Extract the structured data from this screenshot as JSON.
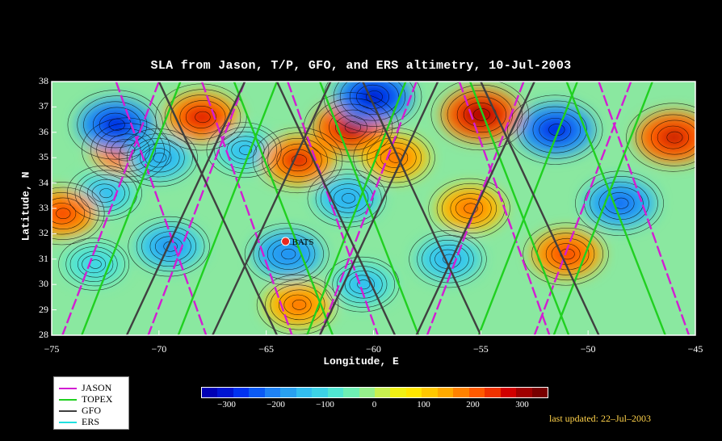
{
  "title": "SLA from Jason, T/P, GFO, and ERS altimetry, 10-Jul-2003",
  "xlabel": "Longitude, E",
  "ylabel": "Latitude, N",
  "x_ticks": [
    "−75",
    "−70",
    "−65",
    "−60",
    "−55",
    "−50",
    "−45"
  ],
  "x_tick_values": [
    -75,
    -70,
    -65,
    -60,
    -55,
    -50,
    -45
  ],
  "y_ticks": [
    "28",
    "29",
    "30",
    "31",
    "32",
    "33",
    "34",
    "35",
    "36",
    "37",
    "38"
  ],
  "y_tick_values": [
    28,
    29,
    30,
    31,
    32,
    33,
    34,
    35,
    36,
    37,
    38
  ],
  "xlim": [
    -75,
    -45
  ],
  "ylim": [
    28,
    38
  ],
  "station": {
    "label": "BATS",
    "lon": -64.1,
    "lat": 31.7,
    "color": "#e8281e"
  },
  "legend": [
    {
      "label": "JASON",
      "color": "#d21ed2"
    },
    {
      "label": "TOPEX",
      "color": "#20d020"
    },
    {
      "label": "GFO",
      "color": "#404040"
    },
    {
      "label": "ERS",
      "color": "#20e0e0"
    }
  ],
  "colorbar": {
    "ticks": [
      "−300",
      "−200",
      "−100",
      "0",
      "100",
      "200",
      "300"
    ],
    "tick_values": [
      -300,
      -200,
      -100,
      0,
      100,
      200,
      300
    ],
    "range": [
      -350,
      350
    ],
    "colors": [
      "#0000b4",
      "#0014d2",
      "#0032f0",
      "#0a5af5",
      "#1e82f5",
      "#28a0f0",
      "#32bef0",
      "#3cd2e6",
      "#50e6d2",
      "#6ef0b4",
      "#96f08c",
      "#c8f050",
      "#f0f014",
      "#ffe600",
      "#ffc800",
      "#ffaa00",
      "#ff8200",
      "#ff5a00",
      "#f03200",
      "#d20000",
      "#a00000",
      "#780000"
    ]
  },
  "updated": "last updated: 22–Jul–2003",
  "chart_data": {
    "type": "heatmap",
    "title": "SLA from Jason, T/P, GFO, and ERS altimetry, 10-Jul-2003",
    "xlabel": "Longitude, E",
    "ylabel": "Latitude, N",
    "xlim": [
      -75,
      -45
    ],
    "ylim": [
      28,
      38
    ],
    "colorbar_range": [
      -350,
      350
    ],
    "features": [
      {
        "lon": -71.5,
        "lat": 35.3,
        "sla": 250
      },
      {
        "lon": -68,
        "lat": 36.6,
        "sla": 270
      },
      {
        "lon": -72,
        "lat": 36.3,
        "sla": -300
      },
      {
        "lon": -70,
        "lat": 35,
        "sla": -180
      },
      {
        "lon": -66,
        "lat": 35.3,
        "sla": -150
      },
      {
        "lon": -63.5,
        "lat": 34.9,
        "sla": 260
      },
      {
        "lon": -61,
        "lat": 36.2,
        "sla": 300
      },
      {
        "lon": -60,
        "lat": 37.4,
        "sla": -320
      },
      {
        "lon": -59,
        "lat": 35,
        "sla": 200
      },
      {
        "lon": -55,
        "lat": 36.7,
        "sla": 320
      },
      {
        "lon": -51.5,
        "lat": 36.1,
        "sla": -300
      },
      {
        "lon": -46,
        "lat": 35.8,
        "sla": 290
      },
      {
        "lon": -48.5,
        "lat": 33.2,
        "sla": -250
      },
      {
        "lon": -61.2,
        "lat": 33.4,
        "sla": -180
      },
      {
        "lon": -72.5,
        "lat": 33.6,
        "sla": -150
      },
      {
        "lon": -74.5,
        "lat": 32.8,
        "sla": 230
      },
      {
        "lon": -69.5,
        "lat": 31.5,
        "sla": -200
      },
      {
        "lon": -64,
        "lat": 31.2,
        "sla": -220
      },
      {
        "lon": -56.5,
        "lat": 31,
        "sla": -170
      },
      {
        "lon": -51,
        "lat": 31.2,
        "sla": 230
      },
      {
        "lon": -55.5,
        "lat": 33,
        "sla": 200
      },
      {
        "lon": -60.5,
        "lat": 30,
        "sla": -150
      },
      {
        "lon": -63.5,
        "lat": 29.2,
        "sla": 200
      },
      {
        "lon": -73,
        "lat": 30.8,
        "sla": -120
      }
    ]
  }
}
